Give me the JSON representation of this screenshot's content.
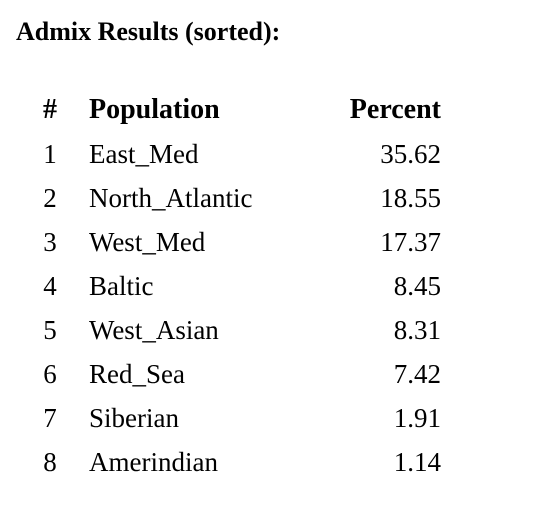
{
  "header": {
    "title": "Admix Results (sorted):"
  },
  "table": {
    "columns": [
      "#",
      "Population",
      "Percent"
    ],
    "rows": [
      [
        "1",
        "East_Med",
        "35.62"
      ],
      [
        "2",
        "North_Atlantic",
        "18.55"
      ],
      [
        "3",
        "West_Med",
        "17.37"
      ],
      [
        "4",
        "Baltic",
        "8.45"
      ],
      [
        "5",
        "West_Asian",
        "8.31"
      ],
      [
        "6",
        "Red_Sea",
        "7.42"
      ],
      [
        "7",
        "Siberian",
        "1.91"
      ],
      [
        "8",
        "Amerindian",
        "1.14"
      ]
    ]
  }
}
